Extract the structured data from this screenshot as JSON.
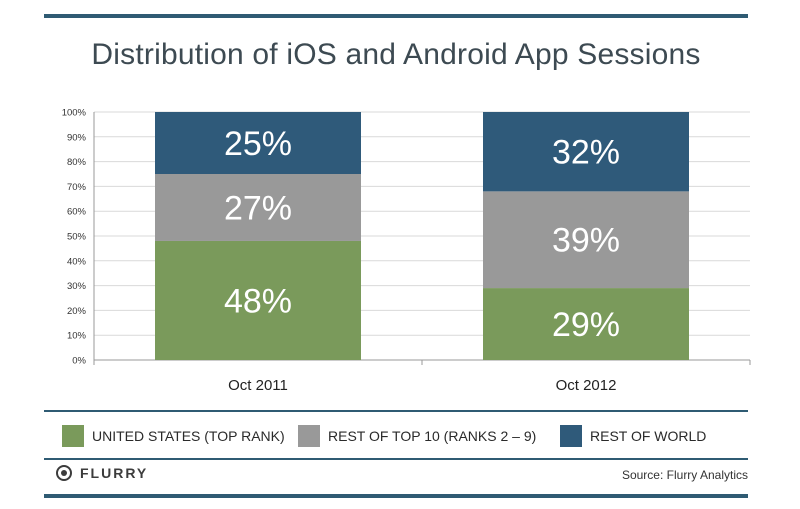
{
  "chart_data": {
    "type": "bar",
    "stacked": true,
    "title": "Distribution of iOS and Android App Sessions",
    "categories": [
      "Oct 2011",
      "Oct 2012"
    ],
    "series": [
      {
        "name": "UNITED STATES (TOP RANK)",
        "values": [
          48,
          29
        ],
        "color": "#7a9a5b",
        "labels": [
          "48%",
          "29%"
        ]
      },
      {
        "name": "REST OF TOP 10 (RANKS 2 – 9)",
        "values": [
          27,
          39
        ],
        "color": "#999999",
        "labels": [
          "27%",
          "39%"
        ]
      },
      {
        "name": "REST OF WORLD",
        "values": [
          25,
          32
        ],
        "color": "#2f5a7a",
        "labels": [
          "25%",
          "32%"
        ]
      }
    ],
    "yticks": [
      "0%",
      "10%",
      "20%",
      "30%",
      "40%",
      "50%",
      "60%",
      "70%",
      "80%",
      "90%",
      "100%"
    ],
    "ylim": [
      0,
      100
    ],
    "grid": true,
    "legend_position": "bottom"
  },
  "footer": {
    "logo_text": "FLURRY",
    "source": "Source: Flurry Analytics"
  },
  "icons": {
    "logo": "flurry-logo-icon"
  }
}
